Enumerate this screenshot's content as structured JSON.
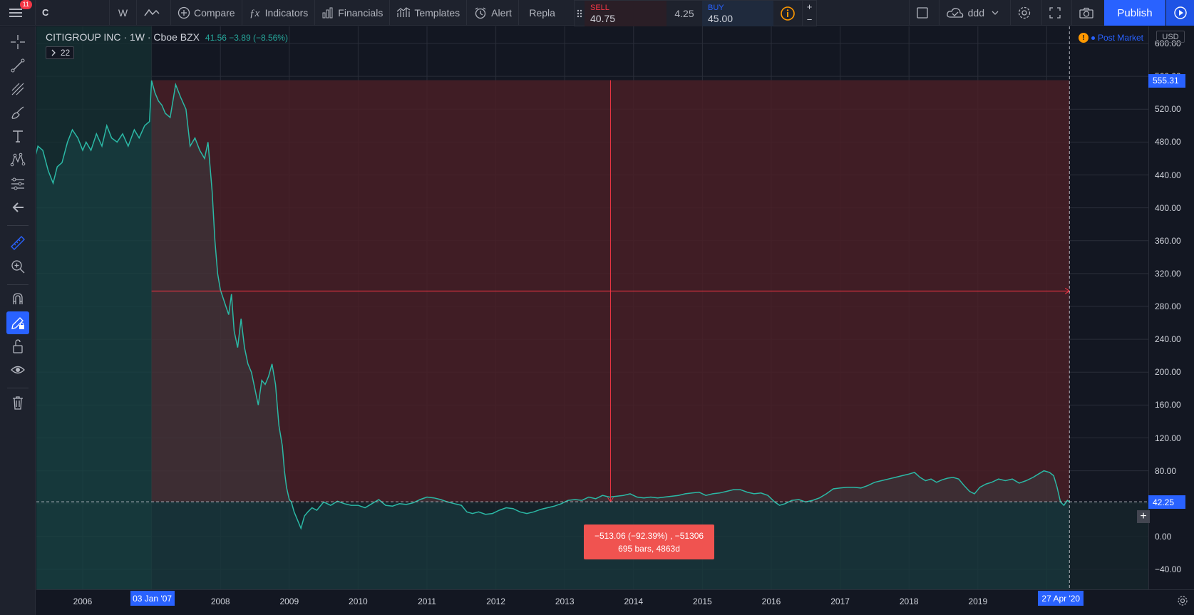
{
  "header": {
    "menu_badge": "11",
    "symbol": "C",
    "interval": "W",
    "compare_label": "Compare",
    "indicators_label": "Indicators",
    "financials_label": "Financials",
    "templates_label": "Templates",
    "alert_label": "Alert",
    "replay_label": "Repla",
    "layout_name": "ddd",
    "publish_label": "Publish"
  },
  "trade": {
    "sell_label": "SELL",
    "sell_price": "40.75",
    "spread": "4.25",
    "buy_label": "BUY",
    "buy_price": "45.00",
    "plus": "+",
    "minus": "−"
  },
  "legend": {
    "title": "CITIGROUP INC · 1W · Cboe BZX",
    "ohlc_change": "41.56  −3.89 (−8.56%)",
    "indicator_count": "22",
    "post_market": "Post Market",
    "currency": "USD"
  },
  "price_axis": {
    "ticks": [
      "600.00",
      "560.00",
      "520.00",
      "480.00",
      "440.00",
      "400.00",
      "360.00",
      "320.00",
      "280.00",
      "240.00",
      "200.00",
      "160.00",
      "120.00",
      "80.00",
      "40.00",
      "0.00",
      "−40.00"
    ],
    "high_tag": "555.31",
    "current_tag": "42.25"
  },
  "time_axis": {
    "ticks": [
      "2006",
      "2008",
      "2009",
      "2010",
      "2011",
      "2012",
      "2013",
      "2014",
      "2015",
      "2016",
      "2017",
      "2018",
      "2019"
    ],
    "start_tag": "03 Jan '07",
    "end_tag": "27 Apr '20"
  },
  "measure": {
    "line1": "−513.06 (−92.39%) , −51306",
    "line2": "695 bars, 4863d"
  },
  "chart_data": {
    "type": "line",
    "title": "CITIGROUP INC · 1W · Cboe BZX",
    "ylim": [
      -40,
      600
    ],
    "xlim": [
      2005.3,
      2020.5
    ],
    "colors": {
      "line": "#26a69a",
      "range_fill": "#f23645",
      "tag_blue": "#2962ff",
      "tag_red": "#f23645"
    },
    "measure_range": {
      "x_start": 2007.0,
      "x_end": 2020.33,
      "y_high": 555.31,
      "y_low": 42.25
    },
    "series": [
      {
        "points": [
          [
            2005.3,
            458
          ],
          [
            2005.35,
            475
          ],
          [
            2005.42,
            470
          ],
          [
            2005.5,
            445
          ],
          [
            2005.57,
            430
          ],
          [
            2005.63,
            450
          ],
          [
            2005.7,
            455
          ],
          [
            2005.78,
            480
          ],
          [
            2005.85,
            495
          ],
          [
            2005.93,
            485
          ],
          [
            2006.0,
            470
          ],
          [
            2006.05,
            480
          ],
          [
            2006.12,
            470
          ],
          [
            2006.2,
            490
          ],
          [
            2006.28,
            475
          ],
          [
            2006.35,
            500
          ],
          [
            2006.42,
            485
          ],
          [
            2006.5,
            480
          ],
          [
            2006.58,
            490
          ],
          [
            2006.66,
            475
          ],
          [
            2006.75,
            495
          ],
          [
            2006.82,
            485
          ],
          [
            2006.9,
            500
          ],
          [
            2006.97,
            505
          ],
          [
            2007.0,
            555
          ],
          [
            2007.05,
            540
          ],
          [
            2007.1,
            530
          ],
          [
            2007.15,
            525
          ],
          [
            2007.2,
            515
          ],
          [
            2007.27,
            510
          ],
          [
            2007.35,
            550
          ],
          [
            2007.42,
            535
          ],
          [
            2007.5,
            520
          ],
          [
            2007.56,
            475
          ],
          [
            2007.63,
            485
          ],
          [
            2007.7,
            470
          ],
          [
            2007.77,
            460
          ],
          [
            2007.82,
            480
          ],
          [
            2007.88,
            420
          ],
          [
            2007.92,
            360
          ],
          [
            2007.96,
            320
          ],
          [
            2008.0,
            300
          ],
          [
            2008.04,
            290
          ],
          [
            2008.08,
            280
          ],
          [
            2008.12,
            270
          ],
          [
            2008.16,
            295
          ],
          [
            2008.2,
            250
          ],
          [
            2008.25,
            230
          ],
          [
            2008.3,
            265
          ],
          [
            2008.35,
            230
          ],
          [
            2008.4,
            210
          ],
          [
            2008.45,
            200
          ],
          [
            2008.5,
            180
          ],
          [
            2008.55,
            160
          ],
          [
            2008.6,
            190
          ],
          [
            2008.65,
            185
          ],
          [
            2008.7,
            195
          ],
          [
            2008.75,
            210
          ],
          [
            2008.8,
            185
          ],
          [
            2008.85,
            135
          ],
          [
            2008.9,
            110
          ],
          [
            2008.93,
            80
          ],
          [
            2008.96,
            60
          ],
          [
            2009.0,
            45
          ],
          [
            2009.03,
            42
          ],
          [
            2009.07,
            30
          ],
          [
            2009.12,
            20
          ],
          [
            2009.17,
            10
          ],
          [
            2009.22,
            25
          ],
          [
            2009.27,
            30
          ],
          [
            2009.33,
            35
          ],
          [
            2009.4,
            32
          ],
          [
            2009.5,
            42
          ],
          [
            2009.6,
            38
          ],
          [
            2009.7,
            43
          ],
          [
            2009.8,
            40
          ],
          [
            2009.9,
            38
          ],
          [
            2010.0,
            38
          ],
          [
            2010.1,
            35
          ],
          [
            2010.2,
            40
          ],
          [
            2010.3,
            45
          ],
          [
            2010.4,
            38
          ],
          [
            2010.5,
            37
          ],
          [
            2010.6,
            40
          ],
          [
            2010.7,
            39
          ],
          [
            2010.8,
            41
          ],
          [
            2010.9,
            45
          ],
          [
            2011.0,
            48
          ],
          [
            2011.1,
            47
          ],
          [
            2011.2,
            45
          ],
          [
            2011.3,
            42
          ],
          [
            2011.4,
            40
          ],
          [
            2011.5,
            38
          ],
          [
            2011.58,
            30
          ],
          [
            2011.66,
            28
          ],
          [
            2011.75,
            30
          ],
          [
            2011.85,
            27
          ],
          [
            2011.95,
            28
          ],
          [
            2012.05,
            32
          ],
          [
            2012.15,
            35
          ],
          [
            2012.25,
            34
          ],
          [
            2012.35,
            30
          ],
          [
            2012.45,
            28
          ],
          [
            2012.55,
            30
          ],
          [
            2012.65,
            33
          ],
          [
            2012.75,
            35
          ],
          [
            2012.85,
            37
          ],
          [
            2012.95,
            40
          ],
          [
            2013.05,
            44
          ],
          [
            2013.15,
            45
          ],
          [
            2013.25,
            44
          ],
          [
            2013.35,
            48
          ],
          [
            2013.45,
            46
          ],
          [
            2013.55,
            50
          ],
          [
            2013.65,
            48
          ],
          [
            2013.75,
            49
          ],
          [
            2013.85,
            50
          ],
          [
            2013.95,
            52
          ],
          [
            2014.05,
            48
          ],
          [
            2014.15,
            47
          ],
          [
            2014.25,
            48
          ],
          [
            2014.35,
            47
          ],
          [
            2014.45,
            48
          ],
          [
            2014.55,
            49
          ],
          [
            2014.65,
            50
          ],
          [
            2014.75,
            52
          ],
          [
            2014.85,
            53
          ],
          [
            2014.95,
            54
          ],
          [
            2015.05,
            50
          ],
          [
            2015.15,
            52
          ],
          [
            2015.25,
            53
          ],
          [
            2015.35,
            55
          ],
          [
            2015.45,
            57
          ],
          [
            2015.55,
            57
          ],
          [
            2015.65,
            54
          ],
          [
            2015.75,
            52
          ],
          [
            2015.85,
            53
          ],
          [
            2015.95,
            50
          ],
          [
            2016.05,
            42
          ],
          [
            2016.12,
            38
          ],
          [
            2016.2,
            40
          ],
          [
            2016.3,
            44
          ],
          [
            2016.4,
            45
          ],
          [
            2016.5,
            42
          ],
          [
            2016.6,
            44
          ],
          [
            2016.7,
            47
          ],
          [
            2016.8,
            52
          ],
          [
            2016.9,
            58
          ],
          [
            2017.0,
            59
          ],
          [
            2017.1,
            60
          ],
          [
            2017.2,
            60
          ],
          [
            2017.3,
            59
          ],
          [
            2017.4,
            62
          ],
          [
            2017.5,
            66
          ],
          [
            2017.6,
            68
          ],
          [
            2017.7,
            70
          ],
          [
            2017.8,
            72
          ],
          [
            2017.9,
            74
          ],
          [
            2018.0,
            76
          ],
          [
            2018.08,
            78
          ],
          [
            2018.16,
            72
          ],
          [
            2018.24,
            68
          ],
          [
            2018.32,
            70
          ],
          [
            2018.4,
            66
          ],
          [
            2018.48,
            69
          ],
          [
            2018.56,
            71
          ],
          [
            2018.64,
            72
          ],
          [
            2018.72,
            70
          ],
          [
            2018.8,
            62
          ],
          [
            2018.88,
            55
          ],
          [
            2018.95,
            52
          ],
          [
            2019.03,
            60
          ],
          [
            2019.12,
            64
          ],
          [
            2019.2,
            66
          ],
          [
            2019.3,
            70
          ],
          [
            2019.4,
            68
          ],
          [
            2019.5,
            70
          ],
          [
            2019.6,
            65
          ],
          [
            2019.7,
            68
          ],
          [
            2019.8,
            72
          ],
          [
            2019.88,
            76
          ],
          [
            2019.96,
            80
          ],
          [
            2020.04,
            78
          ],
          [
            2020.1,
            74
          ],
          [
            2020.15,
            60
          ],
          [
            2020.2,
            42
          ],
          [
            2020.25,
            38
          ],
          [
            2020.3,
            44
          ],
          [
            2020.33,
            42
          ]
        ]
      }
    ]
  }
}
